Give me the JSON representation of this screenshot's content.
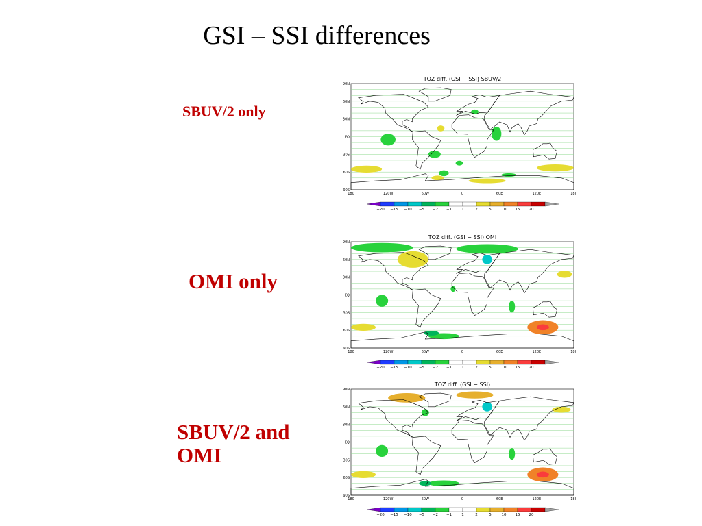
{
  "slide": {
    "title": "GSI – SSI differences",
    "labels": [
      "SBUV/2 only",
      "OMI only",
      "SBUV/2 and OMI"
    ]
  },
  "panels": [
    {
      "map_title": "TOZ  diff.  (GSI  −  SSI)  SBUV/2"
    },
    {
      "map_title": "TOZ  diff.  (GSI  −  SSI)  OMI"
    },
    {
      "map_title": "TOZ  diff.  (GSI  −  SSI)"
    }
  ],
  "axes": {
    "lat_ticks": [
      "90N",
      "60N",
      "30N",
      "EQ",
      "30S",
      "60S",
      "90S"
    ],
    "lon_ticks": [
      "180",
      "120W",
      "60W",
      "0",
      "60E",
      "120E",
      "180"
    ]
  },
  "colorbar": {
    "labels": [
      "−20",
      "−15",
      "−10",
      "−5",
      "−2",
      "−1",
      "1",
      "2",
      "5",
      "10",
      "15",
      "20"
    ],
    "colors": [
      "#7a00c8",
      "#1e3cff",
      "#0096e6",
      "#00c8c8",
      "#00b45a",
      "#28d23c",
      "#ffffff",
      "#ffffff",
      "#e6dc32",
      "#e6af2d",
      "#f08228",
      "#fa3c3c",
      "#c80000",
      "#a0a0a0"
    ]
  },
  "colors": {
    "label_red": "#c00000",
    "land_outline": "#000000",
    "grid": "#8fd88f"
  }
}
